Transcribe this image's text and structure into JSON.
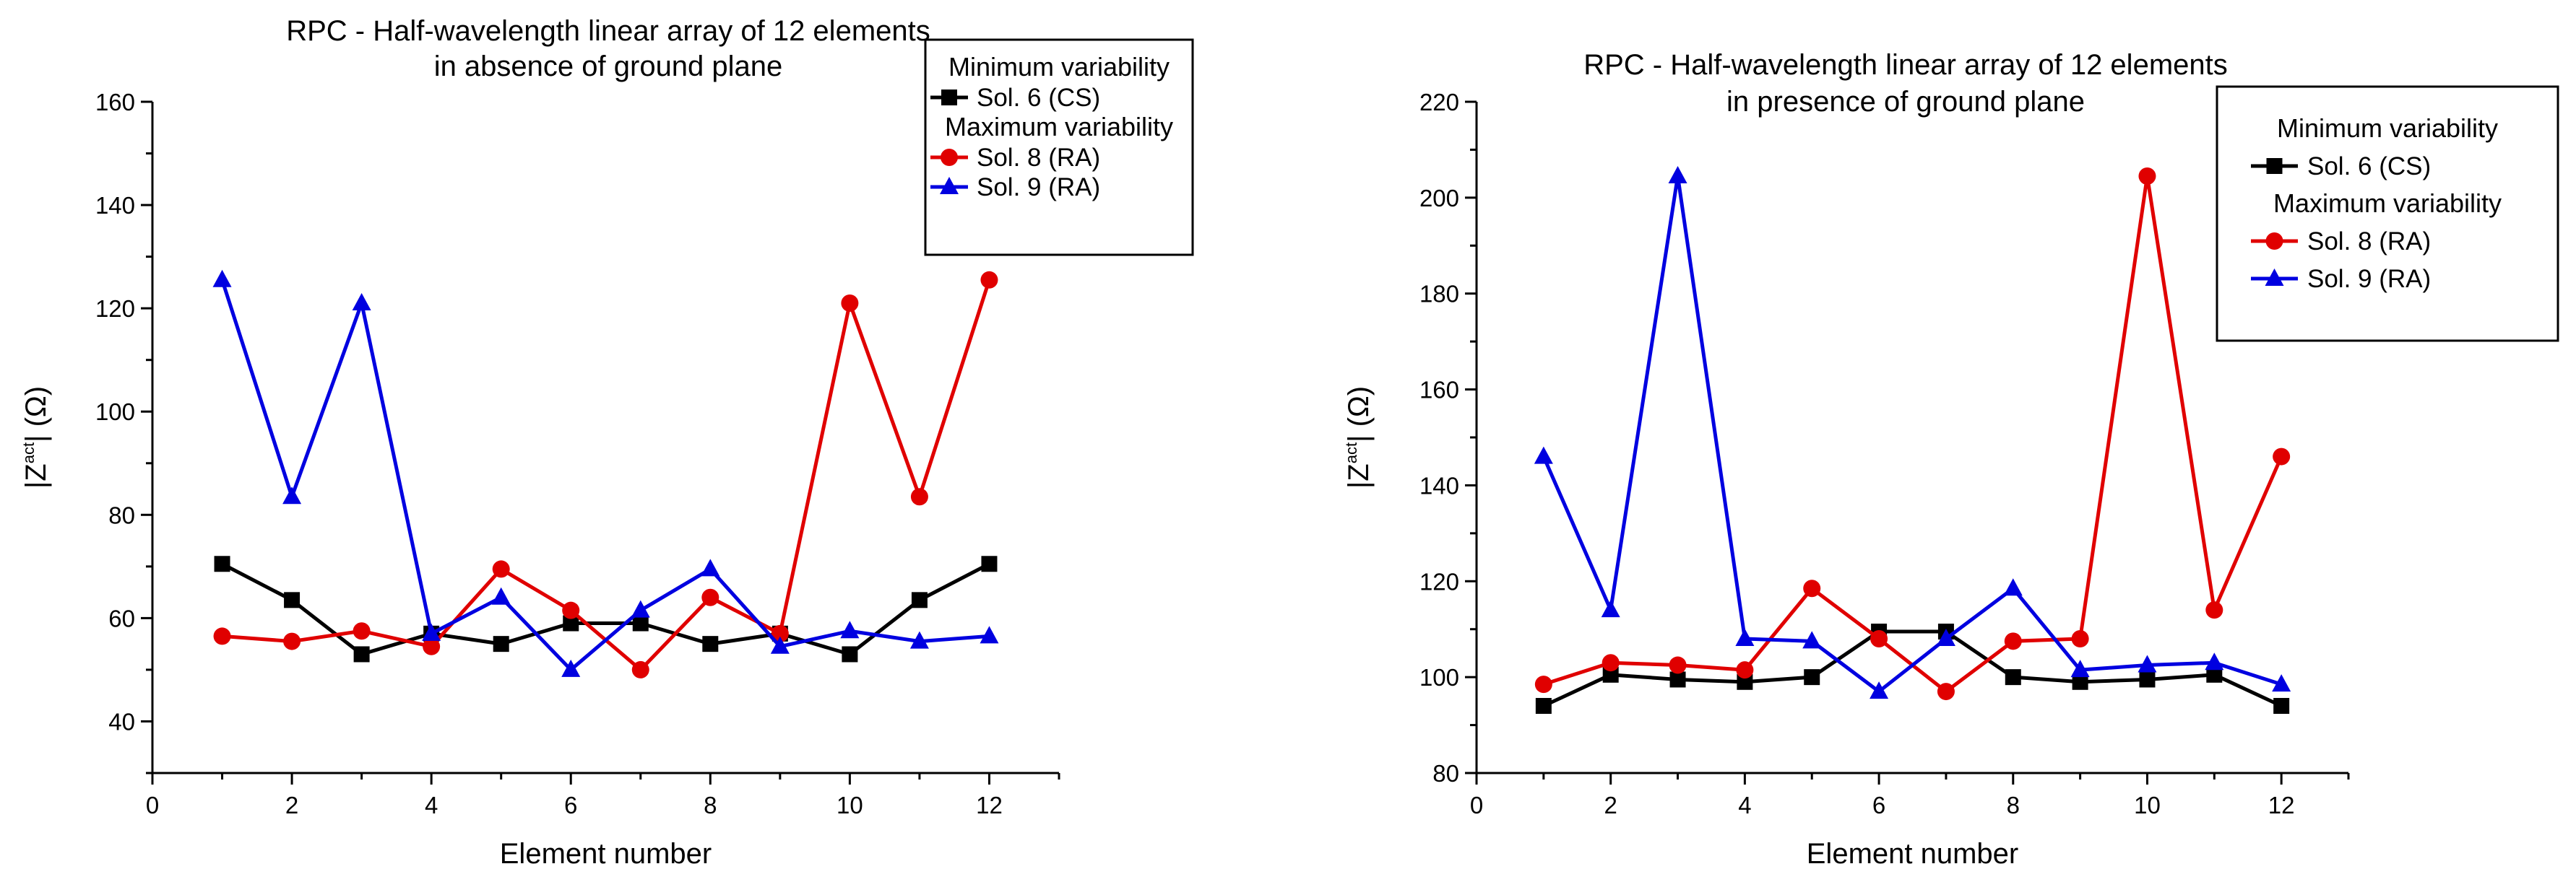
{
  "chart_data": [
    {
      "type": "line",
      "title": [
        "RPC - Half-wavelength linear array of 12 elements",
        "in absence of ground plane"
      ],
      "xlabel": "Element number",
      "ylabel": "|Z",
      "ylabel_sup": "act",
      "ylabel_tail": "| (Ω)",
      "xlim": [
        0,
        13
      ],
      "ylim": [
        30,
        160
      ],
      "xticks": [
        0,
        2,
        4,
        6,
        8,
        10,
        12
      ],
      "yticks": [
        40,
        60,
        80,
        100,
        120,
        140,
        160
      ],
      "x": [
        1,
        2,
        3,
        4,
        5,
        6,
        7,
        8,
        9,
        10,
        11,
        12
      ],
      "legend_groups": [
        {
          "heading": "Minimum variability",
          "series": [
            0
          ]
        },
        {
          "heading": "Maximum variability",
          "series": [
            1,
            2
          ]
        }
      ],
      "series": [
        {
          "name": "Sol. 6 (CS)",
          "color": "#000000",
          "marker": "square",
          "values": [
            70.5,
            63.5,
            53,
            57,
            55,
            59,
            59,
            55,
            57,
            53,
            63.5,
            70.5
          ]
        },
        {
          "name": "Sol. 8 (RA)",
          "color": "#e00000",
          "marker": "circle",
          "values": [
            56.5,
            55.5,
            57.5,
            54.5,
            69.5,
            61.5,
            50,
            64,
            57,
            121,
            83.5,
            125.5
          ]
        },
        {
          "name": "Sol. 9 (RA)",
          "color": "#0000e0",
          "marker": "triangle",
          "values": [
            125.5,
            83.5,
            121,
            57,
            64,
            50,
            61.5,
            69.5,
            54.5,
            57.5,
            55.5,
            56.5
          ]
        }
      ]
    },
    {
      "type": "line",
      "title": [
        "RPC - Half-wavelength linear array of 12 elements",
        "in presence of ground plane"
      ],
      "xlabel": "Element number",
      "ylabel": "|Z",
      "ylabel_sup": "act",
      "ylabel_tail": "| (Ω)",
      "xlim": [
        0,
        13
      ],
      "ylim": [
        80,
        220
      ],
      "xticks": [
        0,
        2,
        4,
        6,
        8,
        10,
        12
      ],
      "yticks": [
        80,
        100,
        120,
        140,
        160,
        180,
        200,
        220
      ],
      "x": [
        1,
        2,
        3,
        4,
        5,
        6,
        7,
        8,
        9,
        10,
        11,
        12
      ],
      "legend_groups": [
        {
          "heading": "Minimum variability",
          "series": [
            0
          ]
        },
        {
          "heading": "Maximum variability",
          "series": [
            1,
            2
          ]
        }
      ],
      "series": [
        {
          "name": "Sol. 6 (CS)",
          "color": "#000000",
          "marker": "square",
          "values": [
            94,
            100.5,
            99.5,
            99,
            100,
            109.5,
            109.5,
            100,
            99,
            99.5,
            100.5,
            94
          ]
        },
        {
          "name": "Sol. 8 (RA)",
          "color": "#e00000",
          "marker": "circle",
          "values": [
            98.5,
            103,
            102.5,
            101.5,
            118.5,
            108,
            97,
            107.5,
            108,
            204.5,
            114,
            146
          ]
        },
        {
          "name": "Sol. 9 (RA)",
          "color": "#0000e0",
          "marker": "triangle",
          "values": [
            146,
            114,
            204.5,
            108,
            107.5,
            97,
            108,
            118.5,
            101.5,
            102.5,
            103,
            98.5
          ]
        }
      ]
    }
  ]
}
